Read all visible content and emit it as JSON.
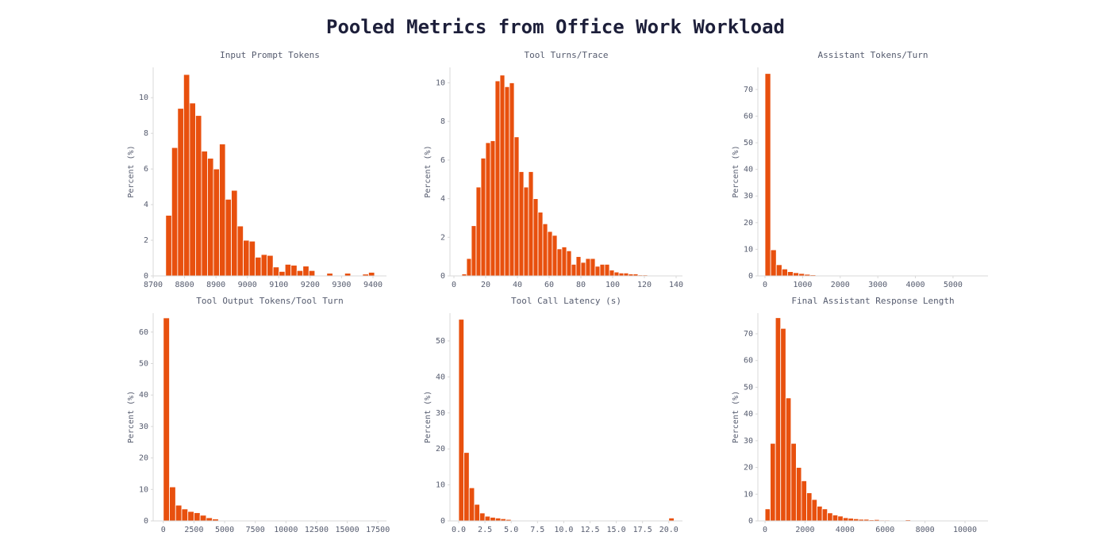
{
  "title": "Pooled Metrics from Office Work Workload",
  "chart_data": [
    {
      "type": "histogram",
      "title": "Input Prompt Tokens",
      "ylabel": "Percent (%)",
      "color": "#e8500e",
      "bins": [
        8740,
        8759,
        8778,
        8797,
        8816,
        8835,
        8854,
        8873,
        8892,
        8911,
        8930,
        8949,
        8968,
        8987,
        9006,
        9025,
        9044,
        9063,
        9082,
        9101,
        9120,
        9139,
        9158,
        9177,
        9196,
        9215,
        9234,
        9253,
        9272,
        9291,
        9310,
        9329,
        9348,
        9367,
        9386,
        9405
      ],
      "values": [
        3.4,
        7.2,
        9.4,
        11.3,
        9.7,
        9.0,
        7.0,
        6.6,
        6.0,
        7.4,
        4.3,
        4.8,
        2.8,
        2.0,
        1.95,
        1.05,
        1.2,
        1.15,
        0.5,
        0.25,
        0.65,
        0.6,
        0.3,
        0.55,
        0.3,
        0,
        0,
        0.15,
        0,
        0,
        0.15,
        0,
        0,
        0.1,
        0.2
      ],
      "xlim": [
        8700,
        9443
      ],
      "xticks": [
        8700,
        8800,
        8900,
        9000,
        9100,
        9200,
        9300,
        9400
      ],
      "ylim": [
        0,
        11.7
      ],
      "yticks": [
        0,
        2,
        4,
        6,
        8,
        10
      ]
    },
    {
      "type": "histogram",
      "title": "Tool Turns/Trace",
      "ylabel": "Percent (%)",
      "color": "#e8500e",
      "bins": [
        5,
        8,
        11,
        14,
        17,
        20,
        23,
        26,
        29,
        32,
        35,
        38,
        41,
        44,
        47,
        50,
        53,
        56,
        59,
        62,
        65,
        68,
        71,
        74,
        77,
        80,
        83,
        86,
        89,
        92,
        95,
        98,
        101,
        104,
        107,
        110,
        113,
        116,
        119,
        122,
        125
      ],
      "values": [
        0.1,
        0.9,
        2.6,
        4.6,
        6.1,
        6.9,
        7.0,
        10.1,
        10.4,
        9.8,
        10.0,
        7.2,
        5.4,
        4.6,
        5.4,
        4.0,
        3.3,
        2.7,
        2.3,
        2.1,
        1.4,
        1.5,
        1.3,
        0.6,
        1.0,
        0.7,
        0.9,
        0.9,
        0.5,
        0.6,
        0.6,
        0.3,
        0.2,
        0.15,
        0.15,
        0.1,
        0.1,
        0.05,
        0.05,
        0
      ],
      "xlim": [
        -2.5,
        144
      ],
      "xticks": [
        0,
        20,
        40,
        60,
        80,
        100,
        120,
        140
      ],
      "ylim": [
        0,
        10.8
      ],
      "yticks": [
        0,
        2,
        4,
        6,
        8,
        10
      ]
    },
    {
      "type": "histogram",
      "title": "Assistant Tokens/Turn",
      "ylabel": "Percent (%)",
      "color": "#e8500e",
      "bins": [
        0,
        150,
        300,
        450,
        600,
        750,
        900,
        1050,
        1200,
        1350,
        1500,
        1650
      ],
      "values": [
        76,
        9.8,
        4.2,
        2.6,
        1.6,
        1.2,
        0.9,
        0.6,
        0.4,
        0.2,
        0.1
      ],
      "xlim": [
        -190,
        5930
      ],
      "xticks": [
        0,
        1000,
        2000,
        3000,
        4000,
        5000
      ],
      "ylim": [
        0,
        78.3
      ],
      "yticks": [
        0,
        10,
        20,
        30,
        40,
        50,
        60,
        70
      ]
    },
    {
      "type": "histogram",
      "title": "Tool Output Tokens/Tool Turn",
      "ylabel": "Percent (%)",
      "color": "#e8500e",
      "bins": [
        0,
        500,
        1000,
        1500,
        2000,
        2500,
        3000,
        3500,
        4000,
        4500,
        5000,
        5500
      ],
      "values": [
        64.5,
        10.8,
        5.0,
        3.8,
        3.0,
        2.6,
        1.8,
        1.0,
        0.6,
        0.2,
        0.1
      ],
      "xlim": [
        -830,
        18200
      ],
      "xticks": [
        0,
        2500,
        5000,
        7500,
        10000,
        12500,
        15000,
        17500
      ],
      "ylim": [
        0,
        66
      ],
      "yticks": [
        0,
        10,
        20,
        30,
        40,
        50,
        60
      ]
    },
    {
      "type": "histogram",
      "title": "Tool Call Latency (s)",
      "ylabel": "Percent (%)",
      "color": "#e8500e",
      "bins": [
        0,
        0.5,
        1,
        1.5,
        2,
        2.5,
        3,
        3.5,
        4,
        4.5,
        5,
        5.5,
        6,
        6.5,
        7,
        7.5,
        8,
        8.5,
        9,
        9.5,
        10,
        10.5,
        11,
        11.5,
        12,
        12.5,
        13,
        13.5,
        14,
        14.5,
        15,
        15.5,
        16,
        16.5,
        17,
        17.5,
        18,
        18.5,
        19,
        19.5,
        20,
        20.5
      ],
      "values": [
        56,
        19,
        9.2,
        4.6,
        2.2,
        1.3,
        1.0,
        0.8,
        0.6,
        0.4,
        0.2,
        0.1,
        0.05,
        0.05,
        0,
        0,
        0,
        0,
        0,
        0,
        0,
        0,
        0,
        0,
        0,
        0,
        0,
        0,
        0,
        0,
        0,
        0,
        0,
        0,
        0,
        0,
        0,
        0,
        0,
        0,
        0.8
      ],
      "xlim": [
        -0.83,
        21.3
      ],
      "xticks": [
        {
          "value": 0,
          "label": "0.0"
        },
        2.5,
        {
          "value": 5,
          "label": "5.0"
        },
        7.5,
        {
          "value": 10,
          "label": "10.0"
        },
        12.5,
        {
          "value": 15,
          "label": "15.0"
        },
        17.5,
        {
          "value": 20,
          "label": "20.0"
        }
      ],
      "ylim": [
        0,
        57.7
      ],
      "yticks": [
        0,
        10,
        20,
        30,
        40,
        50
      ]
    },
    {
      "type": "histogram",
      "title": "Final Assistant Response Length",
      "ylabel": "Percent (%)",
      "color": "#e8500e",
      "bins": [
        0,
        260,
        520,
        780,
        1040,
        1300,
        1560,
        1820,
        2080,
        2340,
        2600,
        2860,
        3120,
        3380,
        3640,
        3900,
        4160,
        4420,
        4680,
        4940,
        5200,
        5460,
        5720,
        5980,
        6240,
        6500,
        6760,
        7020,
        7280
      ],
      "values": [
        4.5,
        29,
        76,
        72,
        46,
        29,
        20,
        15,
        10.5,
        8,
        5.5,
        4.5,
        3,
        2.2,
        1.8,
        1.2,
        1.0,
        0.8,
        0.6,
        0.6,
        0.4,
        0.5,
        0.3,
        0.3,
        0.2,
        0,
        0,
        0.4
      ],
      "xlim": [
        -360,
        11150
      ],
      "xticks": [
        0,
        2000,
        4000,
        6000,
        8000,
        10000
      ],
      "ylim": [
        0,
        77.7
      ],
      "yticks": [
        0,
        10,
        20,
        30,
        40,
        50,
        60,
        70
      ]
    }
  ]
}
